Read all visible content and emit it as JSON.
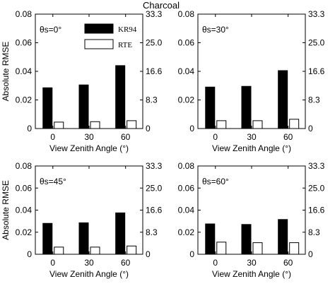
{
  "figure": {
    "title": "Charcoal",
    "ylabel": "Absolute RMSE",
    "xlabel": "View Zenith Angle (°)",
    "legend": [
      "KR94",
      "RTE"
    ]
  },
  "chart_data": [
    {
      "type": "bar",
      "panel_label": "θs=0°",
      "categories": [
        "0",
        "30",
        "60"
      ],
      "series": [
        {
          "name": "KR94",
          "values": [
            0.0285,
            0.0305,
            0.044
          ],
          "color": "#000000"
        },
        {
          "name": "RTE",
          "values": [
            0.0045,
            0.0048,
            0.0055
          ],
          "color": "#ffffff"
        }
      ],
      "xlabel": "View Zenith Angle (°)",
      "ylabel": "Absolute RMSE",
      "ylim": [
        0,
        0.08
      ],
      "yticks": [
        "0",
        "0.02",
        "0.04",
        "0.06",
        "0.08"
      ],
      "y2ticks": [
        "0",
        "8.3",
        "16.6",
        "25.0",
        "33.3"
      ],
      "legend": [
        "KR94",
        "RTE"
      ]
    },
    {
      "type": "bar",
      "panel_label": "θs=30°",
      "categories": [
        "0",
        "30",
        "60"
      ],
      "series": [
        {
          "name": "KR94",
          "values": [
            0.029,
            0.0295,
            0.0405
          ],
          "color": "#000000"
        },
        {
          "name": "RTE",
          "values": [
            0.0055,
            0.0055,
            0.0065
          ],
          "color": "#ffffff"
        }
      ],
      "xlabel": "View Zenith Angle (°)",
      "ylim": [
        0,
        0.08
      ],
      "yticks": [
        "0",
        "0.02",
        "0.04",
        "0.06",
        "0.08"
      ],
      "y2ticks": [
        "0",
        "8.3",
        "16.6",
        "25.0",
        "33.3"
      ]
    },
    {
      "type": "bar",
      "panel_label": "θs=45°",
      "categories": [
        "0",
        "30",
        "60"
      ],
      "series": [
        {
          "name": "KR94",
          "values": [
            0.028,
            0.0285,
            0.0375
          ],
          "color": "#000000"
        },
        {
          "name": "RTE",
          "values": [
            0.0065,
            0.0065,
            0.0075
          ],
          "color": "#ffffff"
        }
      ],
      "xlabel": "View Zenith Angle (°)",
      "ylabel": "Absolute RMSE",
      "ylim": [
        0,
        0.08
      ],
      "yticks": [
        "0",
        "0.02",
        "0.04",
        "0.06",
        "0.08"
      ],
      "y2ticks": [
        "0",
        "8.3",
        "16.6",
        "25.0",
        "33.3"
      ]
    },
    {
      "type": "bar",
      "panel_label": "θs=60°",
      "categories": [
        "0",
        "30",
        "60"
      ],
      "series": [
        {
          "name": "KR94",
          "values": [
            0.0275,
            0.027,
            0.0315
          ],
          "color": "#000000"
        },
        {
          "name": "RTE",
          "values": [
            0.011,
            0.0105,
            0.0105
          ],
          "color": "#ffffff"
        }
      ],
      "xlabel": "View Zenith Angle (°)",
      "ylim": [
        0,
        0.08
      ],
      "yticks": [
        "0",
        "0.02",
        "0.04",
        "0.06",
        "0.08"
      ],
      "y2ticks": [
        "0",
        "8.3",
        "16.6",
        "25.0",
        "33.3"
      ]
    }
  ]
}
